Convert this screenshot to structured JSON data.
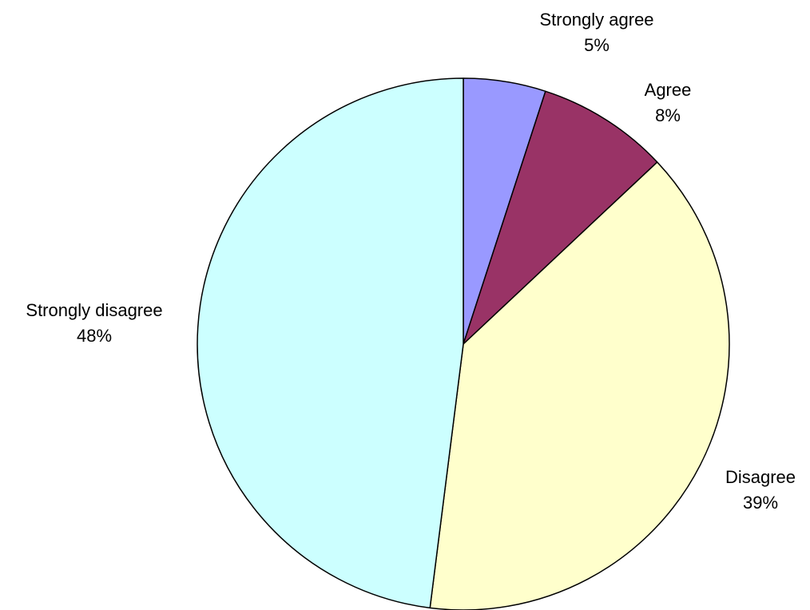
{
  "chart_data": {
    "type": "pie",
    "title": "",
    "legend": "none",
    "slices": [
      {
        "label": "Strongly agree",
        "value": 5,
        "value_label": "5%",
        "color": "#9999FF"
      },
      {
        "label": "Agree",
        "value": 8,
        "value_label": "8%",
        "color": "#993366"
      },
      {
        "label": "Disagree",
        "value": 39,
        "value_label": "39%",
        "color": "#FFFFCC"
      },
      {
        "label": "Strongly disagree",
        "value": 48,
        "value_label": "48%",
        "color": "#CCFFFF"
      }
    ]
  }
}
